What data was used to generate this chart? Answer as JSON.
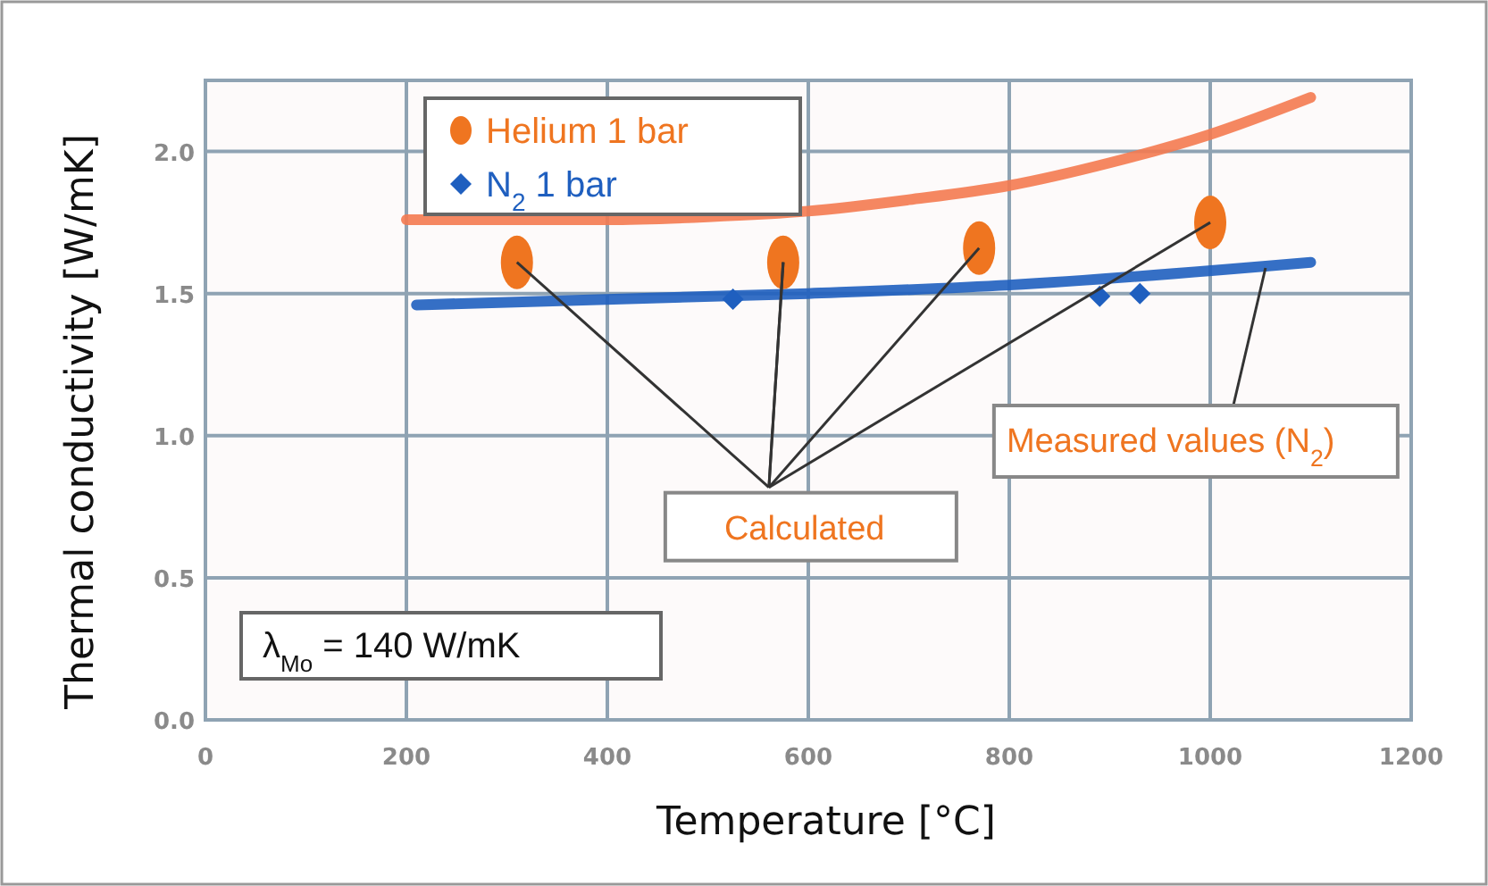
{
  "chart_data": {
    "type": "line",
    "xlabel": "Temperature [°C]",
    "ylabel": "Thermal conductivity [W/mK]",
    "xlim": [
      0,
      1200
    ],
    "xticks": [
      0,
      200,
      400,
      600,
      800,
      1000,
      1200
    ],
    "ylim": [
      0,
      2.25
    ],
    "yticks": [
      {
        "value": 0,
        "label": "0.0"
      },
      {
        "value": 0.5,
        "label": "0.5"
      },
      {
        "value": 1,
        "label": "1.0"
      },
      {
        "value": 1.5,
        "label": "1.5"
      },
      {
        "value": 2,
        "label": "2.0"
      }
    ],
    "grid": true,
    "legend": "top left",
    "series": [
      {
        "color": "#f47a50",
        "x": [
          200,
          300,
          400,
          500,
          600,
          700,
          800,
          900,
          1000,
          1100
        ],
        "values": [
          1.76,
          1.76,
          1.76,
          1.77,
          1.79,
          1.83,
          1.88,
          1.96,
          2.06,
          2.19
        ]
      },
      {
        "color": "#1f5fbf",
        "x": [
          210,
          600,
          800,
          1100
        ],
        "values": [
          1.46,
          1.5,
          1.53,
          1.61
        ]
      },
      {
        "type": "scatter",
        "name": "Helium 1 bar",
        "marker": "circle",
        "color": "#ef7520",
        "x": [
          310,
          575,
          770,
          1000
        ],
        "values": [
          1.61,
          1.61,
          1.66,
          1.75
        ]
      },
      {
        "type": "scatter",
        "name": "N$_{2}$ 1 bar",
        "marker": "diamond",
        "color": "#1f5fbf",
        "x": [
          525,
          890,
          930
        ],
        "values": [
          1.48,
          1.49,
          1.5
        ]
      }
    ],
    "annotations": [
      {
        "text": "Calculated",
        "x": 575,
        "y": 1.61
      },
      {
        "text": "Measured values (N$_{2}$)",
        "x": 1055,
        "y": 1.59
      },
      "λ$_{Mo}$ = 140 W/mK"
    ]
  }
}
